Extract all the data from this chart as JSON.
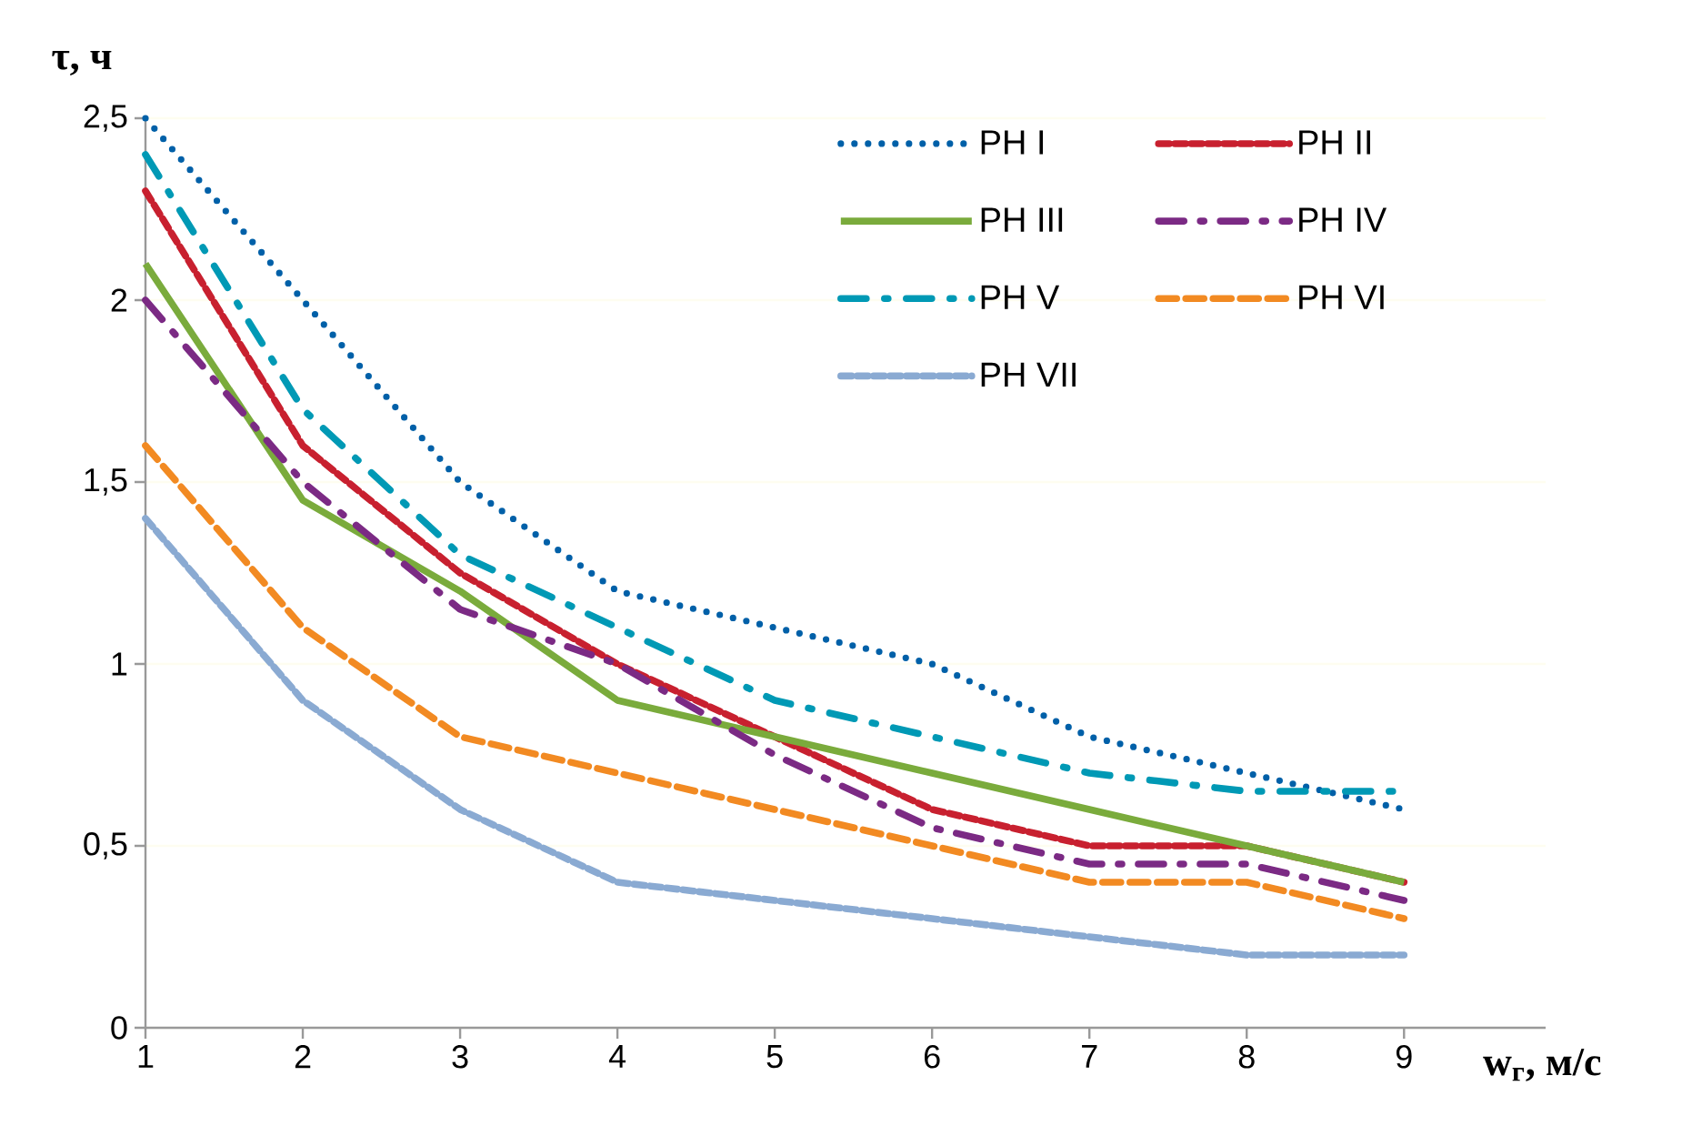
{
  "chart_data": {
    "type": "line",
    "xlabel": "w$_{г}$, м/с",
    "ylabel": "τ, ч",
    "x": [
      1,
      2,
      3,
      4,
      5,
      6,
      7,
      8,
      9
    ],
    "xlim": [
      1,
      9.9
    ],
    "xticks": [
      1,
      2,
      3,
      4,
      5,
      6,
      7,
      8,
      9
    ],
    "ylim": [
      0,
      2.5
    ],
    "yticks": [
      0,
      {
        "value": 0.5,
        "label": "0,5"
      },
      1,
      {
        "value": 1.5,
        "label": "1,5"
      },
      2,
      {
        "value": 2.5,
        "label": "2,5"
      }
    ],
    "grid": "y",
    "legend": "top right",
    "series": [
      {
        "name": "РН I",
        "color": "#0060a8",
        "line_style": "dotted",
        "values": [
          2.5,
          2.0,
          1.5,
          1.2,
          1.1,
          1.0,
          0.8,
          0.7,
          0.6
        ]
      },
      {
        "name": "РН II",
        "color": "#c8202f",
        "line_style": "dashed",
        "values": [
          2.3,
          1.6,
          1.25,
          1.0,
          0.8,
          0.6,
          0.5,
          0.5,
          0.4
        ]
      },
      {
        "name": "РН III",
        "color": "#7aab3c",
        "line_style": "solid",
        "values": [
          2.1,
          1.45,
          1.2,
          0.9,
          0.8,
          0.7,
          0.6,
          0.5,
          0.4
        ]
      },
      {
        "name": "РН IV",
        "color": "#7b2a84",
        "line_style": "dashed",
        "values": [
          2.0,
          1.5,
          1.15,
          1.0,
          0.75,
          0.55,
          0.45,
          0.45,
          0.35
        ]
      },
      {
        "name": "РН V",
        "color": "#0099b5",
        "line_style": "dashed",
        "values": [
          2.4,
          1.7,
          1.3,
          1.1,
          0.9,
          0.8,
          0.7,
          0.65,
          0.65
        ]
      },
      {
        "name": "РН VI",
        "color": "#f28a22",
        "line_style": "dashed",
        "values": [
          1.6,
          1.1,
          0.8,
          0.7,
          0.6,
          0.5,
          0.4,
          0.4,
          0.3
        ]
      },
      {
        "name": "РН VII",
        "color": "#8aaad2",
        "line_style": "dashed",
        "values": [
          1.4,
          0.9,
          0.6,
          0.4,
          0.35,
          0.3,
          0.25,
          0.2,
          0.2
        ]
      }
    ]
  }
}
